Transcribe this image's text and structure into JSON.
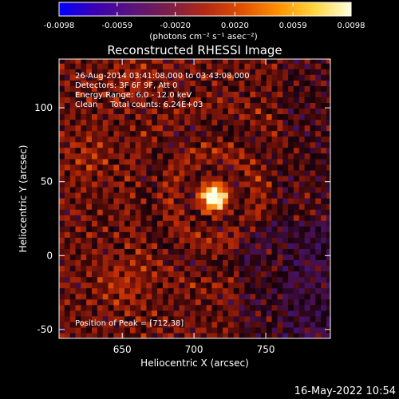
{
  "colorbar": {
    "ticks": [
      {
        "value": -0.0098,
        "label": "-0.0098"
      },
      {
        "value": -0.0059,
        "label": "-0.0059"
      },
      {
        "value": -0.002,
        "label": "-0.0020"
      },
      {
        "value": 0.002,
        "label": "0.0020"
      },
      {
        "value": 0.0059,
        "label": "0.0059"
      },
      {
        "value": 0.0098,
        "label": "0.0098"
      }
    ],
    "range": [
      -0.0098,
      0.0098
    ],
    "unit_label": "(photons cm⁻² s⁻¹ asec⁻²)",
    "colors": [
      "#0000ff",
      "#3c00b4",
      "#5a147a",
      "#7a1f4a",
      "#b42814",
      "#e05000",
      "#ff9000",
      "#ffd640",
      "#ffffe0"
    ]
  },
  "chart_data": {
    "type": "heatmap",
    "title": "Reconstructed RHESSI Image",
    "xlabel": "Heliocentric X (arcsec)",
    "ylabel": "Heliocentric Y (arcsec)",
    "xlim": [
      606,
      795
    ],
    "ylim": [
      -56,
      133
    ],
    "x_ticks": [
      650,
      700,
      750
    ],
    "y_ticks": [
      -50,
      0,
      50,
      100
    ],
    "peak": {
      "x": 712,
      "y": 38,
      "value": 0.0098
    },
    "secondary_sources": [
      {
        "x": 650,
        "y": -20,
        "strength": 0.55
      },
      {
        "x": 625,
        "y": 65,
        "strength": 0.4
      },
      {
        "x": 655,
        "y": 120,
        "strength": 0.35
      }
    ],
    "annotations": [
      "26-Aug-2014 03:41:08.000 to 03:43:08.000",
      "Detectors: 3F 6F 9F, Att 0",
      "Energy Range: 6.0 - 12.0 keV",
      "Clean     Total counts: 6.24E+03"
    ],
    "peak_label": "Position of Peak = [712,38]"
  },
  "footer": {
    "timestamp": "16-May-2022 10:54"
  }
}
